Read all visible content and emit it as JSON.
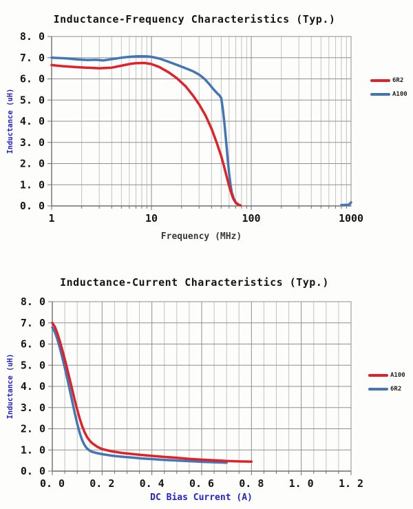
{
  "colors": {
    "red": "#e02127",
    "blue": "#4276b4",
    "grid_minor": "#c3c3c3",
    "grid_major": "#8f8f8f",
    "axis": "#6e6e6e",
    "label_blue": "#2424cd",
    "text_dark": "#141414",
    "text_gray": "#3a3a3a"
  },
  "chart_data": [
    {
      "type": "line",
      "title": "Inductance-Frequency Characteristics (Typ.)",
      "xlabel": "Frequency (MHz)",
      "ylabel": "Inductance (uH)",
      "x_scale": "log",
      "xlim": [
        1,
        1000
      ],
      "ylim": [
        0,
        8
      ],
      "grid": true,
      "legend_position": "right",
      "x_tick_values": [
        1,
        10,
        100,
        1000
      ],
      "x_ticks": [
        "1",
        "10",
        "100",
        "1000"
      ],
      "y_tick_values": [
        0,
        1,
        2,
        3,
        4,
        5,
        6,
        7,
        8
      ],
      "y_ticks": [
        "0. 0",
        "1. 0",
        "2. 0",
        "3. 0",
        "4. 0",
        "5. 0",
        "6. 0",
        "7. 0",
        "8. 0"
      ],
      "series": [
        {
          "name": "6R2",
          "color_key": "red",
          "segments": [
            [
              [
                1,
                6.65
              ],
              [
                1.3,
                6.6
              ],
              [
                1.7,
                6.56
              ],
              [
                2.2,
                6.53
              ],
              [
                3,
                6.5
              ],
              [
                4,
                6.53
              ],
              [
                5,
                6.62
              ],
              [
                6,
                6.7
              ],
              [
                7,
                6.74
              ],
              [
                8.5,
                6.75
              ],
              [
                10,
                6.7
              ],
              [
                12,
                6.56
              ],
              [
                15,
                6.3
              ],
              [
                18,
                6.03
              ],
              [
                22,
                5.65
              ],
              [
                26,
                5.22
              ],
              [
                30,
                4.8
              ],
              [
                35,
                4.25
              ],
              [
                40,
                3.65
              ],
              [
                45,
                3.0
              ],
              [
                50,
                2.35
              ],
              [
                54,
                1.78
              ],
              [
                57,
                1.35
              ],
              [
                60,
                0.95
              ],
              [
                63,
                0.62
              ],
              [
                66,
                0.35
              ],
              [
                70,
                0.15
              ],
              [
                74,
                0.06
              ],
              [
                78,
                0.03
              ]
            ]
          ]
        },
        {
          "name": "A100",
          "color_key": "blue",
          "segments": [
            [
              [
                1,
                7.0
              ],
              [
                1.4,
                6.97
              ],
              [
                1.8,
                6.92
              ],
              [
                2.3,
                6.89
              ],
              [
                2.8,
                6.9
              ],
              [
                3.3,
                6.87
              ],
              [
                4,
                6.93
              ],
              [
                5,
                7.0
              ],
              [
                6,
                7.04
              ],
              [
                7.5,
                7.07
              ],
              [
                9,
                7.06
              ],
              [
                10,
                7.04
              ],
              [
                12,
                6.96
              ],
              [
                15,
                6.8
              ],
              [
                18,
                6.66
              ],
              [
                22,
                6.5
              ],
              [
                26,
                6.36
              ],
              [
                30,
                6.2
              ],
              [
                34,
                6.0
              ],
              [
                38,
                5.75
              ],
              [
                42,
                5.5
              ],
              [
                45,
                5.35
              ],
              [
                48,
                5.22
              ],
              [
                50,
                5.1
              ],
              [
                52,
                4.55
              ],
              [
                54,
                3.85
              ],
              [
                56,
                3.05
              ],
              [
                58,
                2.25
              ],
              [
                60,
                1.55
              ],
              [
                62,
                1.0
              ],
              [
                64,
                0.62
              ],
              [
                67,
                0.33
              ],
              [
                70,
                0.17
              ],
              [
                74,
                0.08
              ]
            ],
            [
              [
                800,
                0.04
              ],
              [
                950,
                0.06
              ],
              [
                1000,
                0.17
              ]
            ]
          ]
        }
      ]
    },
    {
      "type": "line",
      "title": "Inductance-Current Characteristics (Typ.)",
      "xlabel": "DC Bias Current (A)",
      "ylabel": "Inductance (uH)",
      "x_scale": "linear",
      "xlim": [
        0,
        1.2
      ],
      "ylim": [
        0,
        8
      ],
      "grid": true,
      "legend_position": "right",
      "x_minor_step": 0.05,
      "x_major_step": 0.2,
      "x_tick_values": [
        0,
        0.2,
        0.4,
        0.6,
        0.8,
        1.0,
        1.2
      ],
      "x_ticks": [
        "0. 0",
        "0. 2",
        "0. 4",
        "0. 6",
        "0. 8",
        "1. 0",
        "1. 2"
      ],
      "y_tick_values": [
        0,
        1,
        2,
        3,
        4,
        5,
        6,
        7,
        8
      ],
      "y_ticks": [
        "0. 0",
        "1. 0",
        "2. 0",
        "3. 0",
        "4. 0",
        "5. 0",
        "6. 0",
        "7. 0",
        "8. 0"
      ],
      "series": [
        {
          "name": "A100",
          "color_key": "red",
          "segments": [
            [
              [
                0,
                7.0
              ],
              [
                0.01,
                6.82
              ],
              [
                0.02,
                6.52
              ],
              [
                0.03,
                6.15
              ],
              [
                0.04,
                5.72
              ],
              [
                0.05,
                5.28
              ],
              [
                0.06,
                4.82
              ],
              [
                0.07,
                4.34
              ],
              [
                0.08,
                3.85
              ],
              [
                0.09,
                3.36
              ],
              [
                0.1,
                2.9
              ],
              [
                0.11,
                2.48
              ],
              [
                0.12,
                2.12
              ],
              [
                0.13,
                1.83
              ],
              [
                0.14,
                1.6
              ],
              [
                0.15,
                1.44
              ],
              [
                0.16,
                1.32
              ],
              [
                0.18,
                1.15
              ],
              [
                0.2,
                1.04
              ],
              [
                0.24,
                0.93
              ],
              [
                0.28,
                0.86
              ],
              [
                0.32,
                0.81
              ],
              [
                0.36,
                0.76
              ],
              [
                0.4,
                0.72
              ],
              [
                0.45,
                0.67
              ],
              [
                0.5,
                0.63
              ],
              [
                0.55,
                0.58
              ],
              [
                0.6,
                0.54
              ],
              [
                0.65,
                0.51
              ],
              [
                0.7,
                0.48
              ],
              [
                0.75,
                0.46
              ],
              [
                0.8,
                0.45
              ]
            ]
          ]
        },
        {
          "name": "6R2",
          "color_key": "blue",
          "segments": [
            [
              [
                0,
                6.78
              ],
              [
                0.01,
                6.58
              ],
              [
                0.02,
                6.24
              ],
              [
                0.03,
                5.83
              ],
              [
                0.04,
                5.37
              ],
              [
                0.05,
                4.88
              ],
              [
                0.06,
                4.37
              ],
              [
                0.07,
                3.84
              ],
              [
                0.08,
                3.3
              ],
              [
                0.09,
                2.76
              ],
              [
                0.1,
                2.24
              ],
              [
                0.11,
                1.8
              ],
              [
                0.12,
                1.46
              ],
              [
                0.13,
                1.22
              ],
              [
                0.14,
                1.06
              ],
              [
                0.15,
                0.97
              ],
              [
                0.16,
                0.91
              ],
              [
                0.18,
                0.85
              ],
              [
                0.2,
                0.8
              ],
              [
                0.24,
                0.73
              ],
              [
                0.28,
                0.68
              ],
              [
                0.32,
                0.64
              ],
              [
                0.36,
                0.6
              ],
              [
                0.4,
                0.57
              ],
              [
                0.45,
                0.53
              ],
              [
                0.5,
                0.5
              ],
              [
                0.55,
                0.47
              ],
              [
                0.6,
                0.44
              ],
              [
                0.65,
                0.42
              ],
              [
                0.7,
                0.4
              ]
            ]
          ]
        }
      ]
    }
  ]
}
